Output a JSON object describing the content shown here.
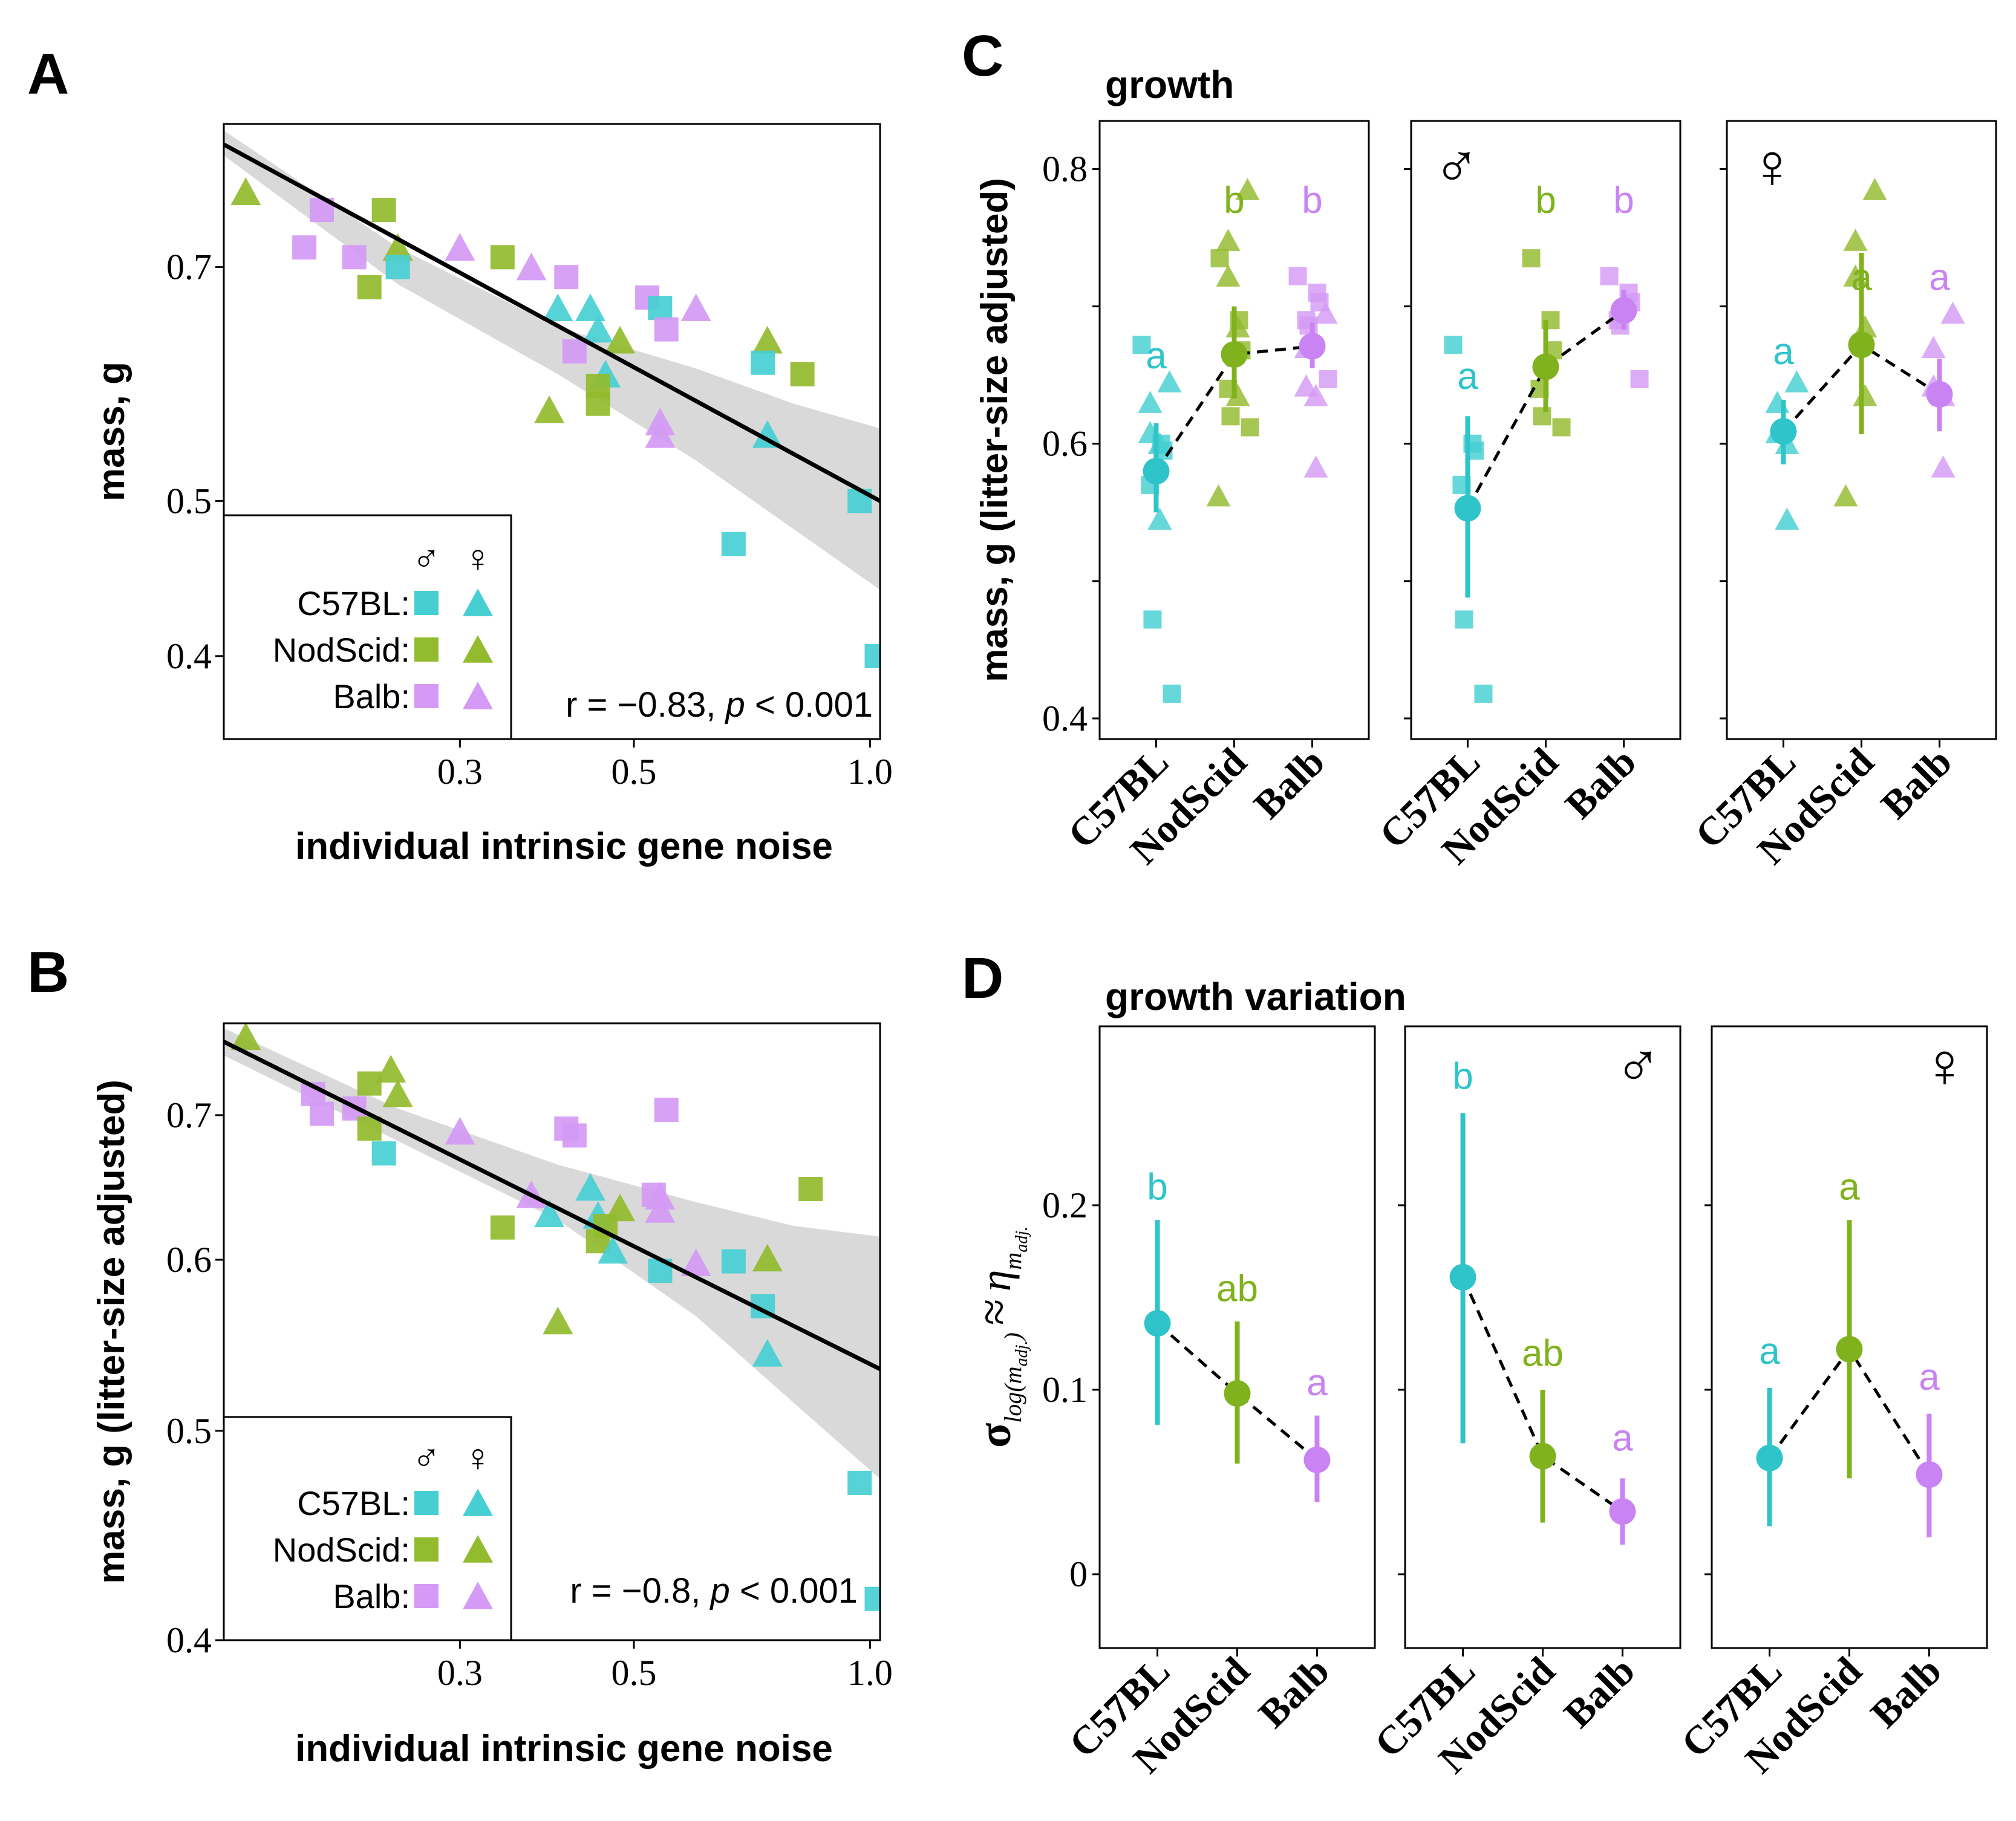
{
  "colors": {
    "C57BL": "#2ec4c9",
    "NodScid": "#7fb21c",
    "Balb": "#c983f2",
    "point_C57BL": "#46cfd2",
    "point_NodScid": "#93bb2e",
    "point_Balb": "#d49af5",
    "ribbon": "#d9d9d9",
    "line": "#000000"
  },
  "strains": [
    "C57BL",
    "NodScid",
    "Balb"
  ],
  "symbols": {
    "male": "♂",
    "female": "♀"
  },
  "chart_data": [
    {
      "panel": "A",
      "type": "scatter",
      "xlabel": "individual intrinsic gene noise",
      "ylabel": "mass, g",
      "x_scale": "log",
      "y_scale": "log",
      "xlim": [
        0.15,
        1.03
      ],
      "ylim": [
        0.355,
        0.86
      ],
      "xticks": [
        0.3,
        0.5,
        1.0
      ],
      "xtick_labels": [
        "0.3",
        "0.5",
        "1.0"
      ],
      "yticks": [
        0.4,
        0.5,
        0.7
      ],
      "ytick_labels": [
        "0.4",
        "0.5",
        "0.7"
      ],
      "annotation": {
        "r": "r = −0.83, ",
        "p": "p",
        "rest": " < 0.001"
      },
      "fit_line": [
        [
          0.15,
          0.835
        ],
        [
          1.03,
          0.5
        ]
      ],
      "ribbon": {
        "x": [
          0.15,
          0.25,
          0.4,
          0.6,
          0.8,
          1.03
        ],
        "lower": [
          0.822,
          0.683,
          0.6,
          0.53,
          0.48,
          0.44
        ],
        "upper": [
          0.852,
          0.72,
          0.642,
          0.605,
          0.575,
          0.555
        ]
      },
      "legend": {
        "position": "bottom-left",
        "entries": [
          "C57BL:",
          "NodScid:",
          "Balb:"
        ]
      },
      "points": [
        {
          "x": 0.16,
          "y": 0.78,
          "strain": "NodScid",
          "sex": "female"
        },
        {
          "x": 0.2,
          "y": 0.76,
          "strain": "Balb",
          "sex": "male"
        },
        {
          "x": 0.19,
          "y": 0.72,
          "strain": "Balb",
          "sex": "male"
        },
        {
          "x": 0.22,
          "y": 0.71,
          "strain": "Balb",
          "sex": "male"
        },
        {
          "x": 0.24,
          "y": 0.76,
          "strain": "NodScid",
          "sex": "male"
        },
        {
          "x": 0.25,
          "y": 0.72,
          "strain": "NodScid",
          "sex": "female"
        },
        {
          "x": 0.25,
          "y": 0.7,
          "strain": "C57BL",
          "sex": "male"
        },
        {
          "x": 0.23,
          "y": 0.68,
          "strain": "NodScid",
          "sex": "male"
        },
        {
          "x": 0.3,
          "y": 0.72,
          "strain": "Balb",
          "sex": "female"
        },
        {
          "x": 0.34,
          "y": 0.71,
          "strain": "NodScid",
          "sex": "male"
        },
        {
          "x": 0.37,
          "y": 0.7,
          "strain": "Balb",
          "sex": "female"
        },
        {
          "x": 0.41,
          "y": 0.69,
          "strain": "Balb",
          "sex": "male"
        },
        {
          "x": 0.4,
          "y": 0.66,
          "strain": "C57BL",
          "sex": "female"
        },
        {
          "x": 0.44,
          "y": 0.66,
          "strain": "C57BL",
          "sex": "female"
        },
        {
          "x": 0.42,
          "y": 0.62,
          "strain": "Balb",
          "sex": "male"
        },
        {
          "x": 0.45,
          "y": 0.64,
          "strain": "C57BL",
          "sex": "female"
        },
        {
          "x": 0.48,
          "y": 0.63,
          "strain": "NodScid",
          "sex": "female"
        },
        {
          "x": 0.46,
          "y": 0.6,
          "strain": "C57BL",
          "sex": "female"
        },
        {
          "x": 0.45,
          "y": 0.59,
          "strain": "NodScid",
          "sex": "male"
        },
        {
          "x": 0.45,
          "y": 0.575,
          "strain": "NodScid",
          "sex": "male"
        },
        {
          "x": 0.39,
          "y": 0.57,
          "strain": "NodScid",
          "sex": "female"
        },
        {
          "x": 0.52,
          "y": 0.67,
          "strain": "Balb",
          "sex": "male"
        },
        {
          "x": 0.54,
          "y": 0.66,
          "strain": "C57BL",
          "sex": "male"
        },
        {
          "x": 0.55,
          "y": 0.64,
          "strain": "Balb",
          "sex": "male"
        },
        {
          "x": 0.6,
          "y": 0.66,
          "strain": "Balb",
          "sex": "female"
        },
        {
          "x": 0.54,
          "y": 0.56,
          "strain": "Balb",
          "sex": "female"
        },
        {
          "x": 0.54,
          "y": 0.55,
          "strain": "Balb",
          "sex": "female"
        },
        {
          "x": 0.74,
          "y": 0.63,
          "strain": "NodScid",
          "sex": "female"
        },
        {
          "x": 0.73,
          "y": 0.61,
          "strain": "C57BL",
          "sex": "male"
        },
        {
          "x": 0.82,
          "y": 0.6,
          "strain": "NodScid",
          "sex": "male"
        },
        {
          "x": 0.74,
          "y": 0.55,
          "strain": "C57BL",
          "sex": "female"
        },
        {
          "x": 0.67,
          "y": 0.47,
          "strain": "C57BL",
          "sex": "male"
        },
        {
          "x": 0.97,
          "y": 0.5,
          "strain": "C57BL",
          "sex": "male"
        },
        {
          "x": 1.02,
          "y": 0.4,
          "strain": "C57BL",
          "sex": "male"
        }
      ]
    },
    {
      "panel": "B",
      "type": "scatter",
      "xlabel": "individual intrinsic gene noise",
      "ylabel": "mass, g (litter-size adjusted)",
      "x_scale": "log",
      "y_scale": "log",
      "xlim": [
        0.15,
        1.03
      ],
      "ylim": [
        0.4,
        0.772
      ],
      "xticks": [
        0.3,
        0.5,
        1.0
      ],
      "xtick_labels": [
        "0.3",
        "0.5",
        "1.0"
      ],
      "yticks": [
        0.4,
        0.5,
        0.6,
        0.7
      ],
      "ytick_labels": [
        "0.4",
        "0.5",
        "0.6",
        "0.7"
      ],
      "annotation": {
        "r": "r = −0.8, ",
        "p": "p",
        "rest": " < 0.001"
      },
      "fit_line": [
        [
          0.15,
          0.757
        ],
        [
          1.03,
          0.534
        ]
      ],
      "ribbon": {
        "x": [
          0.15,
          0.25,
          0.4,
          0.6,
          0.8,
          1.03
        ],
        "lower": [
          0.746,
          0.681,
          0.626,
          0.565,
          0.515,
          0.475
        ],
        "upper": [
          0.768,
          0.705,
          0.664,
          0.638,
          0.622,
          0.615
        ]
      },
      "legend": {
        "position": "bottom-left",
        "entries": [
          "C57BL:",
          "NodScid:",
          "Balb:"
        ]
      },
      "points": [
        {
          "x": 0.16,
          "y": 0.761,
          "strain": "NodScid",
          "sex": "female"
        },
        {
          "x": 0.195,
          "y": 0.716,
          "strain": "Balb",
          "sex": "male"
        },
        {
          "x": 0.2,
          "y": 0.701,
          "strain": "Balb",
          "sex": "male"
        },
        {
          "x": 0.22,
          "y": 0.705,
          "strain": "Balb",
          "sex": "male"
        },
        {
          "x": 0.23,
          "y": 0.724,
          "strain": "NodScid",
          "sex": "male"
        },
        {
          "x": 0.23,
          "y": 0.69,
          "strain": "NodScid",
          "sex": "male"
        },
        {
          "x": 0.245,
          "y": 0.735,
          "strain": "NodScid",
          "sex": "female"
        },
        {
          "x": 0.25,
          "y": 0.716,
          "strain": "NodScid",
          "sex": "female"
        },
        {
          "x": 0.24,
          "y": 0.672,
          "strain": "C57BL",
          "sex": "male"
        },
        {
          "x": 0.3,
          "y": 0.688,
          "strain": "Balb",
          "sex": "female"
        },
        {
          "x": 0.34,
          "y": 0.621,
          "strain": "NodScid",
          "sex": "male"
        },
        {
          "x": 0.37,
          "y": 0.643,
          "strain": "Balb",
          "sex": "female"
        },
        {
          "x": 0.39,
          "y": 0.63,
          "strain": "C57BL",
          "sex": "female"
        },
        {
          "x": 0.41,
          "y": 0.69,
          "strain": "Balb",
          "sex": "male"
        },
        {
          "x": 0.42,
          "y": 0.685,
          "strain": "Balb",
          "sex": "male"
        },
        {
          "x": 0.44,
          "y": 0.648,
          "strain": "C57BL",
          "sex": "female"
        },
        {
          "x": 0.45,
          "y": 0.629,
          "strain": "C57BL",
          "sex": "female"
        },
        {
          "x": 0.46,
          "y": 0.622,
          "strain": "NodScid",
          "sex": "male"
        },
        {
          "x": 0.45,
          "y": 0.612,
          "strain": "NodScid",
          "sex": "male"
        },
        {
          "x": 0.47,
          "y": 0.606,
          "strain": "C57BL",
          "sex": "female"
        },
        {
          "x": 0.48,
          "y": 0.634,
          "strain": "NodScid",
          "sex": "female"
        },
        {
          "x": 0.4,
          "y": 0.562,
          "strain": "NodScid",
          "sex": "female"
        },
        {
          "x": 0.53,
          "y": 0.643,
          "strain": "Balb",
          "sex": "male"
        },
        {
          "x": 0.54,
          "y": 0.642,
          "strain": "Balb",
          "sex": "female"
        },
        {
          "x": 0.54,
          "y": 0.633,
          "strain": "Balb",
          "sex": "female"
        },
        {
          "x": 0.55,
          "y": 0.704,
          "strain": "Balb",
          "sex": "male"
        },
        {
          "x": 0.54,
          "y": 0.593,
          "strain": "C57BL",
          "sex": "male"
        },
        {
          "x": 0.6,
          "y": 0.598,
          "strain": "Balb",
          "sex": "female"
        },
        {
          "x": 0.67,
          "y": 0.599,
          "strain": "C57BL",
          "sex": "male"
        },
        {
          "x": 0.73,
          "y": 0.571,
          "strain": "C57BL",
          "sex": "male"
        },
        {
          "x": 0.74,
          "y": 0.601,
          "strain": "NodScid",
          "sex": "female"
        },
        {
          "x": 0.74,
          "y": 0.543,
          "strain": "C57BL",
          "sex": "female"
        },
        {
          "x": 0.84,
          "y": 0.647,
          "strain": "NodScid",
          "sex": "male"
        },
        {
          "x": 0.97,
          "y": 0.473,
          "strain": "C57BL",
          "sex": "male"
        },
        {
          "x": 1.02,
          "y": 0.418,
          "strain": "C57BL",
          "sex": "male"
        }
      ]
    },
    {
      "panel": "C",
      "type": "dot-errorbar",
      "title": "growth",
      "ylabel": "mass, g (litter-size adjusted)",
      "ylim": [
        0.385,
        0.835
      ],
      "yticks": [
        0.4,
        0.6,
        0.8
      ],
      "ytick_labels": [
        "0.4",
        "0.6",
        "0.8"
      ],
      "minor_yticks": [
        0.5,
        0.7
      ],
      "facets": [
        {
          "sex": "all",
          "symbol": "",
          "summary": [
            {
              "strain": "C57BL",
              "mean": 0.58,
              "lo": 0.55,
              "hi": 0.615,
              "letter": "a",
              "letter_y": 0.655
            },
            {
              "strain": "NodScid",
              "mean": 0.665,
              "lo": 0.633,
              "hi": 0.7,
              "letter": "b",
              "letter_y": 0.768
            },
            {
              "strain": "Balb",
              "mean": 0.671,
              "lo": 0.655,
              "hi": 0.688,
              "letter": "b",
              "letter_y": 0.768
            }
          ],
          "raw": [
            {
              "strain": "C57BL",
              "male": [
                0.672,
                0.6,
                0.595,
                0.57,
                0.472,
                0.418
              ],
              "female": [
                0.645,
                0.63,
                0.608,
                0.6,
                0.545
              ]
            },
            {
              "strain": "NodScid",
              "male": [
                0.735,
                0.69,
                0.668,
                0.64,
                0.62,
                0.612
              ],
              "female": [
                0.785,
                0.748,
                0.722,
                0.685,
                0.635,
                0.562
              ]
            },
            {
              "strain": "Balb",
              "male": [
                0.722,
                0.71,
                0.703,
                0.69,
                0.686,
                0.647
              ],
              "female": [
                0.695,
                0.67,
                0.642,
                0.635,
                0.583
              ]
            }
          ]
        },
        {
          "sex": "male",
          "symbol": "♂",
          "summary": [
            {
              "strain": "C57BL",
              "mean": 0.553,
              "lo": 0.488,
              "hi": 0.62,
              "letter": "a",
              "letter_y": 0.64
            },
            {
              "strain": "NodScid",
              "mean": 0.656,
              "lo": 0.623,
              "hi": 0.69,
              "letter": "b",
              "letter_y": 0.768
            },
            {
              "strain": "Balb",
              "mean": 0.697,
              "lo": 0.683,
              "hi": 0.712,
              "letter": "b",
              "letter_y": 0.768
            }
          ],
          "raw": [
            {
              "strain": "C57BL",
              "male": [
                0.672,
                0.6,
                0.595,
                0.57,
                0.472,
                0.418
              ],
              "female": []
            },
            {
              "strain": "NodScid",
              "male": [
                0.735,
                0.69,
                0.668,
                0.64,
                0.62,
                0.612
              ],
              "female": []
            },
            {
              "strain": "Balb",
              "male": [
                0.722,
                0.71,
                0.703,
                0.69,
                0.686,
                0.647
              ],
              "female": []
            }
          ]
        },
        {
          "sex": "female",
          "symbol": "♀",
          "summary": [
            {
              "strain": "C57BL",
              "mean": 0.609,
              "lo": 0.585,
              "hi": 0.632,
              "letter": "a",
              "letter_y": 0.658
            },
            {
              "strain": "NodScid",
              "mean": 0.672,
              "lo": 0.607,
              "hi": 0.739,
              "letter": "a",
              "letter_y": 0.712
            },
            {
              "strain": "Balb",
              "mean": 0.636,
              "lo": 0.609,
              "hi": 0.662,
              "letter": "a",
              "letter_y": 0.712
            }
          ],
          "raw": [
            {
              "strain": "C57BL",
              "male": [],
              "female": [
                0.645,
                0.63,
                0.608,
                0.6,
                0.545
              ]
            },
            {
              "strain": "NodScid",
              "male": [],
              "female": [
                0.785,
                0.748,
                0.722,
                0.685,
                0.635,
                0.562
              ]
            },
            {
              "strain": "Balb",
              "male": [],
              "female": [
                0.695,
                0.67,
                0.642,
                0.635,
                0.583
              ]
            }
          ]
        }
      ]
    },
    {
      "panel": "D",
      "type": "dot-errorbar",
      "title": "growth variation",
      "ylabel_parts": {
        "sigma": "σ",
        "sigma_sub": "log(m",
        "sigma_sub_sub": "adj.",
        "approx": "≈",
        "eta": "η",
        "eta_sub": "m",
        "eta_sub_sub": "adj."
      },
      "ylim": [
        -0.04,
        0.297
      ],
      "yticks": [
        0,
        0.1,
        0.2
      ],
      "ytick_labels": [
        "0",
        "0.1",
        "0.2"
      ],
      "facets": [
        {
          "sex": "all",
          "symbol": "",
          "summary": [
            {
              "strain": "C57BL",
              "mean": 0.136,
              "lo": 0.081,
              "hi": 0.192,
              "letter": "b",
              "letter_y": 0.203
            },
            {
              "strain": "NodScid",
              "mean": 0.098,
              "lo": 0.06,
              "hi": 0.137,
              "letter": "ab",
              "letter_y": 0.148
            },
            {
              "strain": "Balb",
              "mean": 0.062,
              "lo": 0.039,
              "hi": 0.086,
              "letter": "a",
              "letter_y": 0.097
            }
          ]
        },
        {
          "sex": "male",
          "symbol": "♂",
          "summary": [
            {
              "strain": "C57BL",
              "mean": 0.161,
              "lo": 0.071,
              "hi": 0.25,
              "letter": "b",
              "letter_y": 0.263
            },
            {
              "strain": "NodScid",
              "mean": 0.064,
              "lo": 0.028,
              "hi": 0.1,
              "letter": "ab",
              "letter_y": 0.113
            },
            {
              "strain": "Balb",
              "mean": 0.034,
              "lo": 0.016,
              "hi": 0.052,
              "letter": "a",
              "letter_y": 0.067
            }
          ]
        },
        {
          "sex": "female",
          "symbol": "♀",
          "summary": [
            {
              "strain": "C57BL",
              "mean": 0.063,
              "lo": 0.026,
              "hi": 0.101,
              "letter": "a",
              "letter_y": 0.114
            },
            {
              "strain": "NodScid",
              "mean": 0.122,
              "lo": 0.052,
              "hi": 0.192,
              "letter": "a",
              "letter_y": 0.203
            },
            {
              "strain": "Balb",
              "mean": 0.054,
              "lo": 0.02,
              "hi": 0.087,
              "letter": "a",
              "letter_y": 0.1
            }
          ]
        }
      ]
    }
  ]
}
